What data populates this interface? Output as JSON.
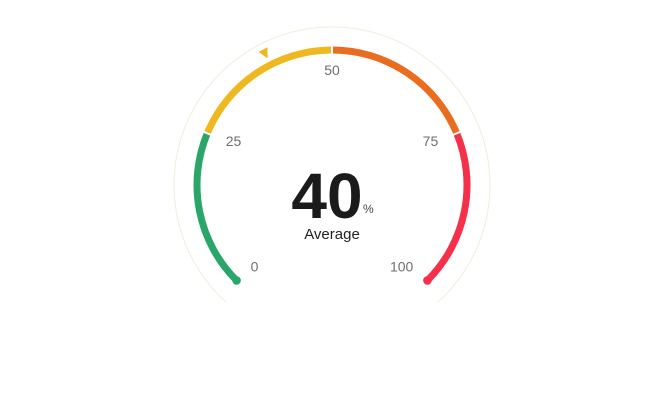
{
  "chart_data": {
    "type": "gauge",
    "value": 40,
    "unit": "%",
    "caption": "Average",
    "min": 0,
    "max": 100,
    "ticks": [
      {
        "value": 0,
        "label": "0"
      },
      {
        "value": 25,
        "label": "25"
      },
      {
        "value": 50,
        "label": "50"
      },
      {
        "value": 75,
        "label": "75"
      },
      {
        "value": 100,
        "label": "100"
      }
    ],
    "bands": [
      {
        "from": 0,
        "to": 25,
        "color": "#2ba66b"
      },
      {
        "from": 25,
        "to": 50,
        "color": "#eeb81e"
      },
      {
        "from": 50,
        "to": 75,
        "color": "#ea6c1f"
      },
      {
        "from": 75,
        "to": 100,
        "color": "#f5304a"
      }
    ],
    "pointer": {
      "shape": "triangle",
      "color": "#eeb81e"
    },
    "outer_ring_color": "#efeedd"
  }
}
